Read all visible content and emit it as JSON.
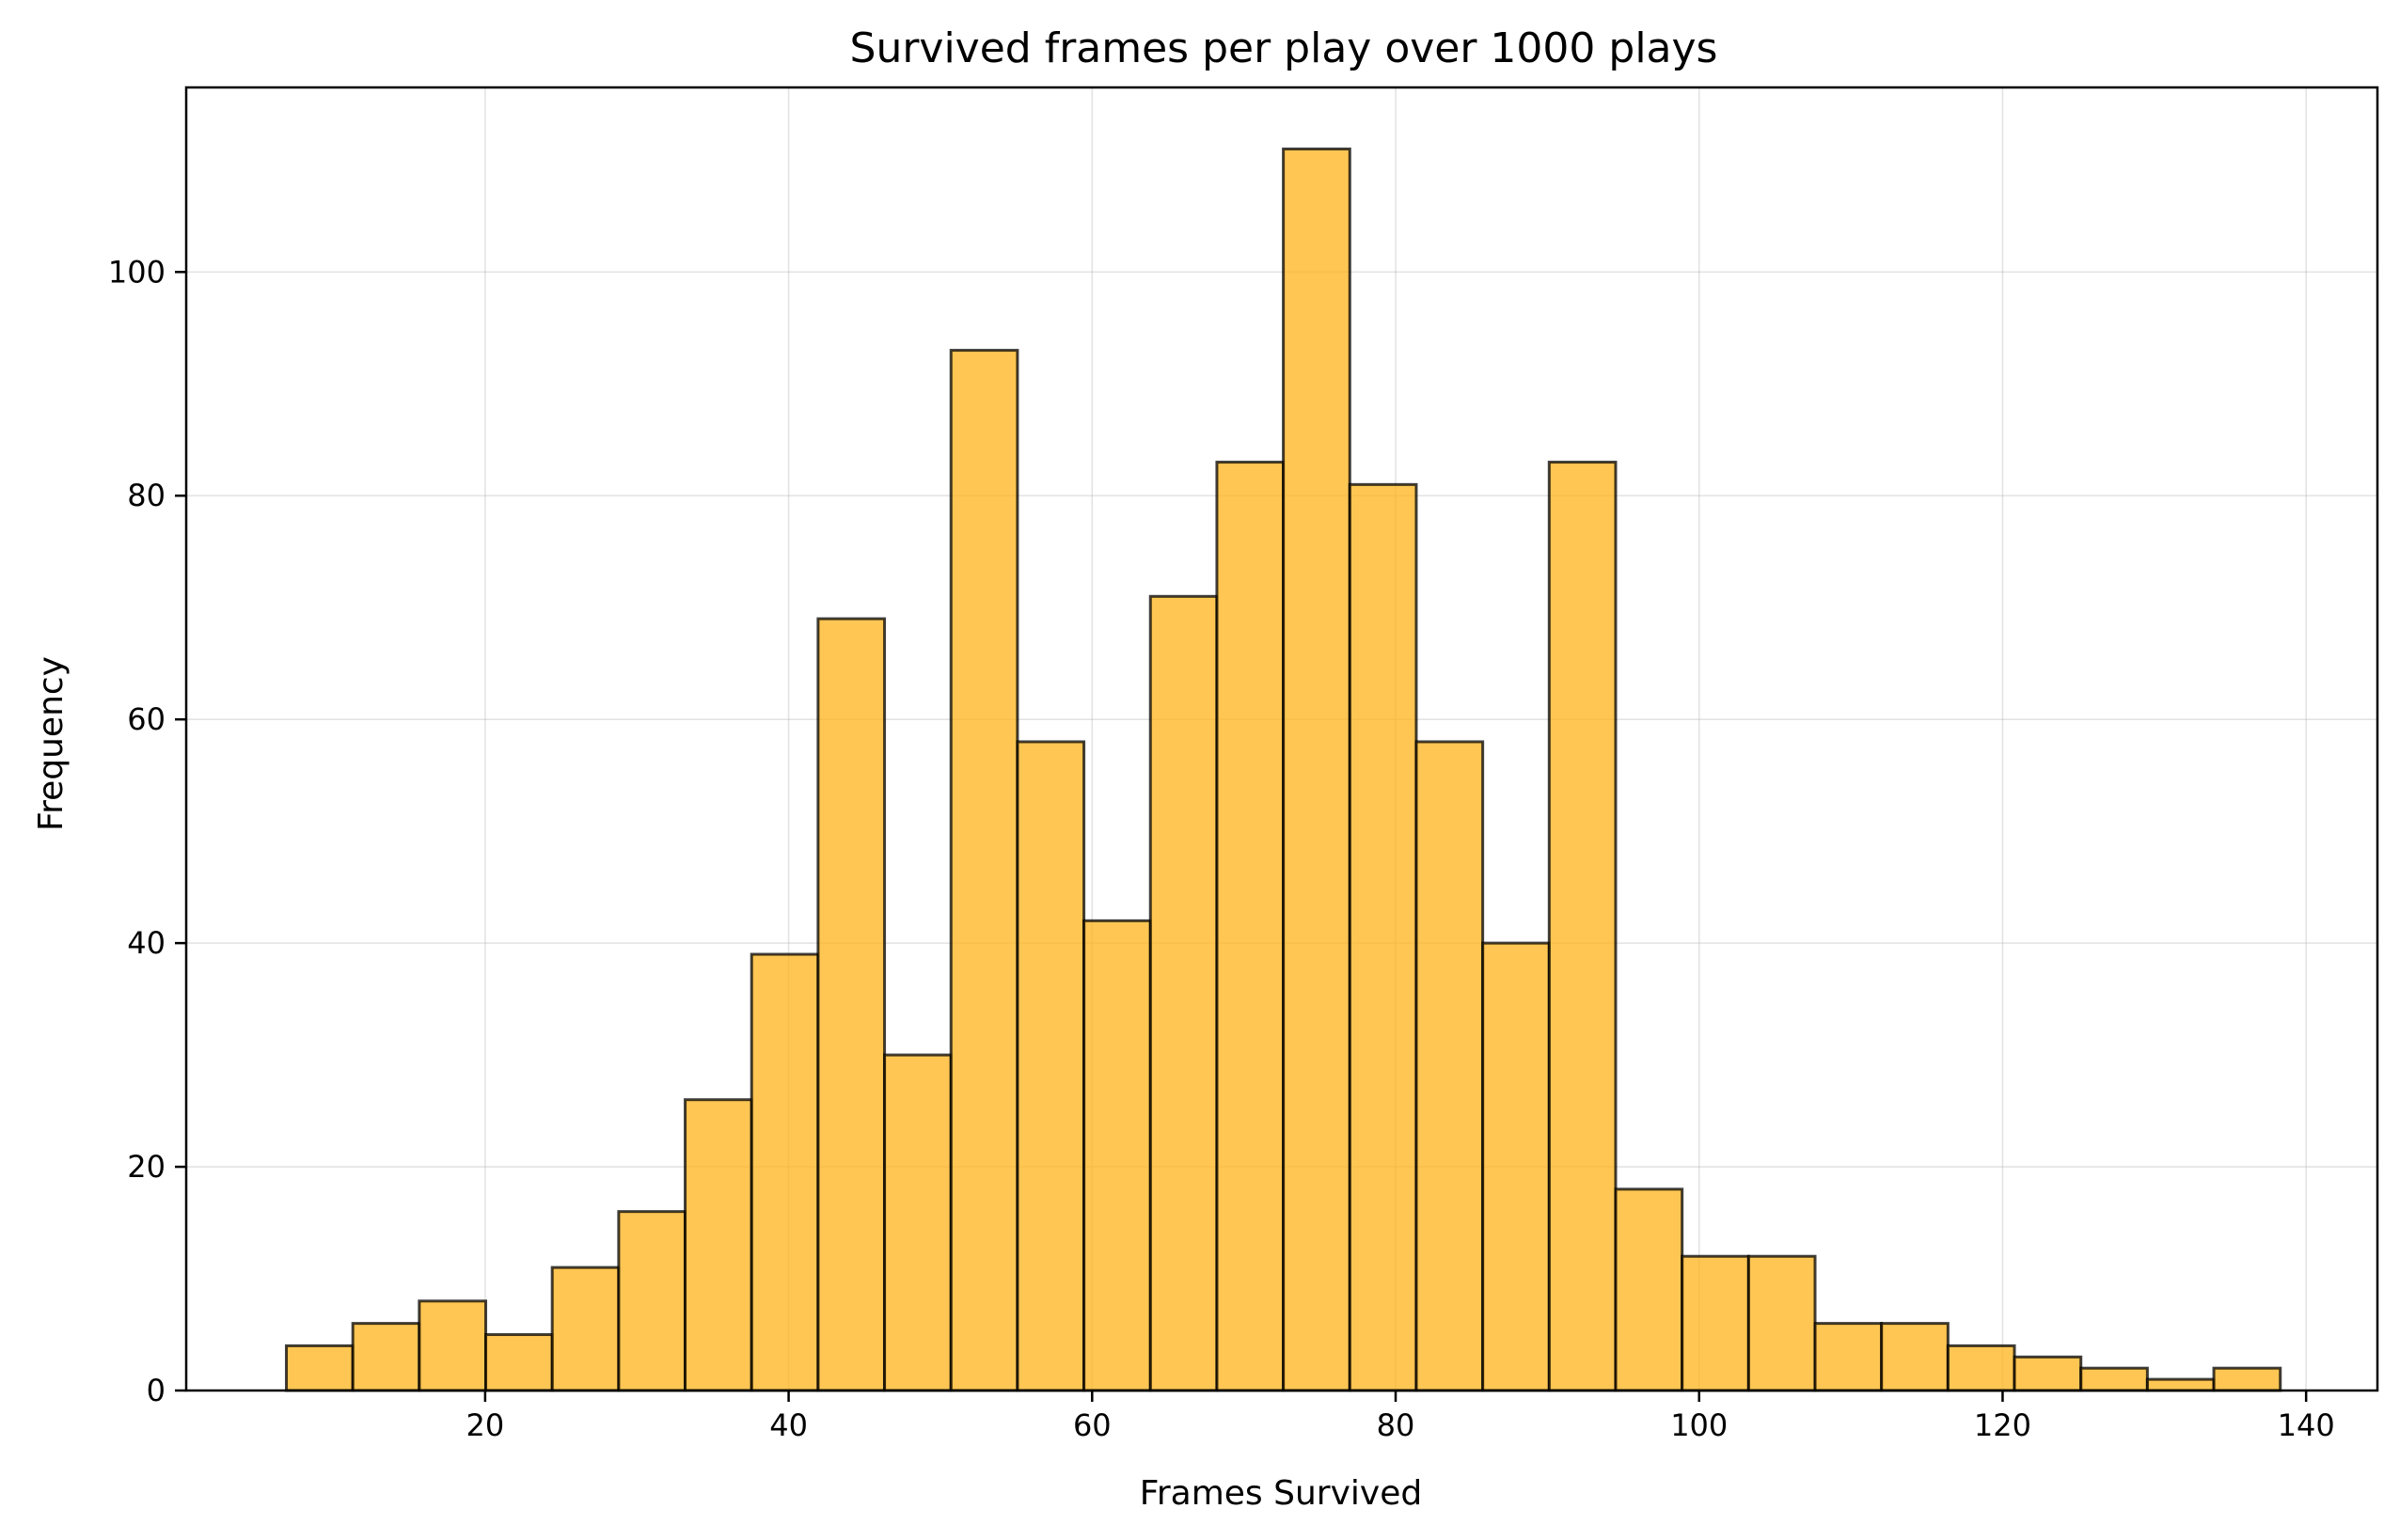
{
  "chart_data": {
    "type": "bar",
    "title": "Survived frames per play over 1000 plays",
    "xlabel": "Frames Survived",
    "ylabel": "Frequency",
    "xlim": [
      0.3,
      144.7
    ],
    "ylim": [
      0,
      116.5
    ],
    "x_ticks": [
      20,
      40,
      60,
      80,
      100,
      120,
      140
    ],
    "y_ticks": [
      0,
      20,
      40,
      60,
      80,
      100
    ],
    "grid": true,
    "bar_color": "#FFB31A",
    "edge_color": "#000000",
    "bin_edges": [
      6.9,
      11.28,
      15.66,
      20.04,
      24.42,
      28.8,
      33.18,
      37.56,
      41.94,
      46.32,
      50.7,
      55.08,
      59.46,
      63.84,
      68.22,
      72.6,
      76.98,
      81.36,
      85.74,
      90.12,
      94.5,
      98.88,
      103.26,
      107.64,
      112.02,
      116.4,
      120.78,
      125.16,
      129.54,
      133.92,
      138.3
    ],
    "values": [
      4,
      6,
      8,
      5,
      11,
      16,
      26,
      39,
      69,
      30,
      93,
      58,
      42,
      71,
      83,
      111,
      81,
      58,
      40,
      83,
      18,
      12,
      12,
      6,
      6,
      4,
      3,
      2,
      1,
      2
    ]
  }
}
